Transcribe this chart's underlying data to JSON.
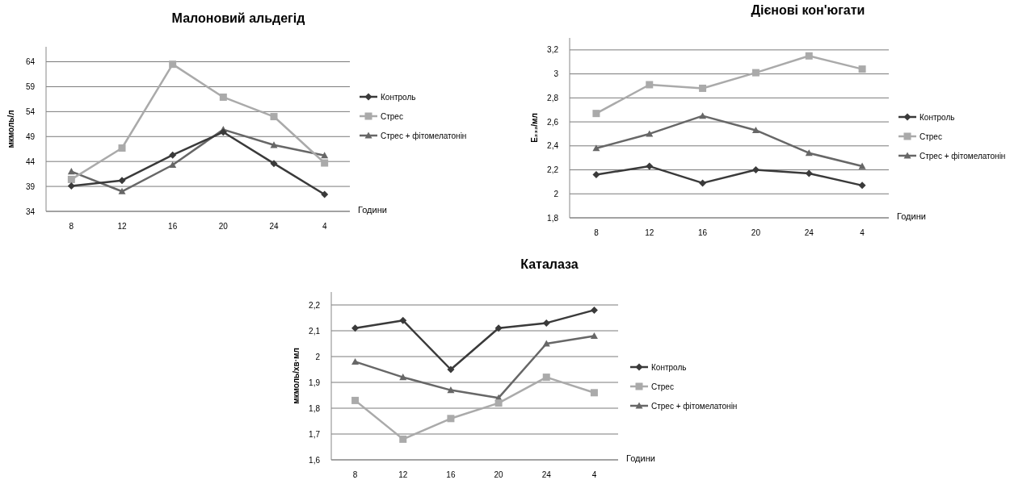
{
  "chart_data": [
    {
      "type": "line",
      "title": "Малоновий альдегід",
      "xlabel": "Години",
      "ylabel": "мкмоль/л",
      "categories": [
        "8",
        "12",
        "16",
        "20",
        "24",
        "4"
      ],
      "ylim": [
        34,
        67
      ],
      "yticks": [
        34,
        39,
        44,
        49,
        54,
        59,
        64
      ],
      "grid": "y",
      "legend": "right",
      "series": [
        {
          "name": "Контроль",
          "color": "#3a3a3a",
          "marker": "diamond",
          "values": [
            39.1,
            40.2,
            45.3,
            49.9,
            43.6,
            37.4
          ]
        },
        {
          "name": "Стрес",
          "color": "#aaaaaa",
          "marker": "square",
          "values": [
            40.4,
            46.7,
            63.5,
            56.9,
            53.0,
            43.7
          ]
        },
        {
          "name": "Стрес + фітомелатонін",
          "color": "#676767",
          "marker": "triangle",
          "values": [
            42.0,
            38.0,
            43.3,
            50.4,
            47.3,
            45.2
          ]
        }
      ]
    },
    {
      "type": "line",
      "title": "Дієнові кон'югати",
      "xlabel": "Години",
      "ylabel": "E₂₃₂/мл",
      "categories": [
        "8",
        "12",
        "16",
        "20",
        "24",
        "4"
      ],
      "ylim": [
        1.8,
        3.3
      ],
      "yticks": [
        {
          "value": 1.8,
          "label": "1,8"
        },
        2,
        {
          "value": 2.2,
          "label": "2,2"
        },
        {
          "value": 2.4,
          "label": "2,4"
        },
        {
          "value": 2.6,
          "label": "2,6"
        },
        {
          "value": 2.8,
          "label": "2,8"
        },
        3,
        {
          "value": 3.2,
          "label": "3,2"
        }
      ],
      "grid": "y",
      "legend": "right",
      "series": [
        {
          "name": "Контроль",
          "color": "#3a3a3a",
          "marker": "diamond",
          "values": [
            2.16,
            2.23,
            2.09,
            2.2,
            2.17,
            2.07
          ]
        },
        {
          "name": "Стрес",
          "color": "#aaaaaa",
          "marker": "square",
          "values": [
            2.67,
            2.91,
            2.88,
            3.01,
            3.15,
            3.04
          ]
        },
        {
          "name": "Стрес + фітомелатонін",
          "color": "#676767",
          "marker": "triangle",
          "values": [
            2.38,
            2.5,
            2.65,
            2.53,
            2.34,
            2.23
          ]
        }
      ]
    },
    {
      "type": "line",
      "title": "Каталаза",
      "xlabel": "Години",
      "ylabel": "мкмоль/хв·мл",
      "categories": [
        "8",
        "12",
        "16",
        "20",
        "24",
        "4"
      ],
      "ylim": [
        1.6,
        2.25
      ],
      "yticks": [
        {
          "value": 1.6,
          "label": "1,6"
        },
        {
          "value": 1.7,
          "label": "1,7"
        },
        {
          "value": 1.8,
          "label": "1,8"
        },
        {
          "value": 1.9,
          "label": "1,9"
        },
        2,
        {
          "value": 2.1,
          "label": "2,1"
        },
        {
          "value": 2.2,
          "label": "2,2"
        }
      ],
      "grid": "y",
      "legend": "right",
      "series": [
        {
          "name": "Контроль",
          "color": "#3a3a3a",
          "marker": "diamond",
          "values": [
            2.11,
            2.14,
            1.95,
            2.11,
            2.13,
            2.18
          ]
        },
        {
          "name": "Стрес",
          "color": "#aaaaaa",
          "marker": "square",
          "values": [
            1.83,
            1.68,
            1.76,
            1.82,
            1.92,
            1.86
          ]
        },
        {
          "name": "Стрес + фітомелатонін",
          "color": "#676767",
          "marker": "triangle",
          "values": [
            1.98,
            1.92,
            1.87,
            1.84,
            2.05,
            2.08
          ]
        }
      ]
    }
  ]
}
